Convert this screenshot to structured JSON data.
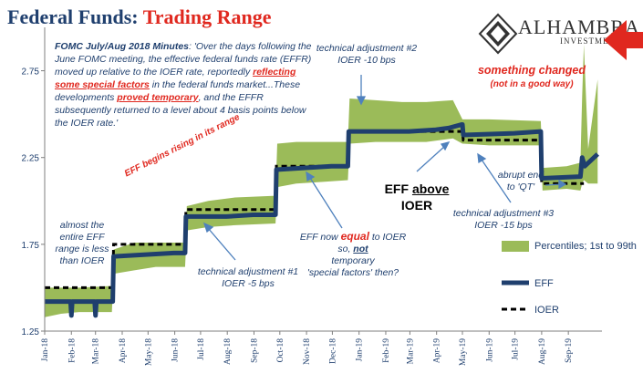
{
  "title": {
    "part1": "Federal Funds:",
    "part2": "Trading Range"
  },
  "logo": {
    "name": "ALHAMBRA",
    "sub": "INVESTMENTS"
  },
  "minutes": {
    "lead": "FOMC July/Aug 2018 Minutes",
    "t1": ": 'Over the days following the June FOMC meeting, the effective federal funds rate (EFFR) moved up relative to the IOER rate, reportedly ",
    "r1": "reflecting some special factors",
    "t2": " in the federal funds market...These developments ",
    "r2": "proved temporary",
    "t3": ", and the EFFR subsequently returned to a level about 4 basis points below the IOER rate.'"
  },
  "annotations": {
    "adj2_a": "technical adjustment #2",
    "adj2_b": "IOER -10 bps",
    "changed_a": "something changed",
    "changed_b": "(not in a good way)",
    "rising": "EFF begins rising in its range",
    "almost_a": "almost the",
    "almost_b": "entire EFF",
    "almost_c": "range is less",
    "almost_d": "than IOER",
    "adj1_a": "technical adjustment #1",
    "adj1_b": "IOER -5 bps",
    "equal_a": "EFF now",
    "equal_b": "equal",
    "equal_c": "to IOER",
    "equal_d": "so,",
    "equal_e": "not",
    "equal_f": "temporary",
    "equal_g": "'special factors' then?",
    "above_a": "EFF",
    "above_b": "above",
    "above_c": "IOER",
    "adj3_a": "technical adjustment #3",
    "adj3_b": "IOER -15 bps",
    "qt_a": "abrupt end",
    "qt_b": "to 'QT'"
  },
  "colors": {
    "band": "#9bbb59",
    "eff": "#1f3f6e",
    "ioer": "#000000",
    "accent": "#e0281f"
  },
  "chart_data": {
    "type": "line",
    "ylim": [
      1.25,
      3.0
    ],
    "yticks": [
      "1.25",
      "1.75",
      "2.25",
      "2.75"
    ],
    "ytick_values": [
      1.25,
      1.75,
      2.25,
      2.75
    ],
    "xlim": [
      "2018-01-01",
      "2019-10-10"
    ],
    "xtick_labels": [
      "Jan-18",
      "Feb-18",
      "Mar-18",
      "Apr-18",
      "May-18",
      "Jun-18",
      "Jul-18",
      "Aug-18",
      "Sep-18",
      "Oct-18",
      "Nov-18",
      "Dec-18",
      "Jan-19",
      "Feb-19",
      "Mar-19",
      "Apr-19",
      "May-19",
      "Jun-19",
      "Jul-19",
      "Aug-19",
      "Sep-19"
    ],
    "xtick_dates": [
      "2018-01-01",
      "2018-02-01",
      "2018-03-01",
      "2018-04-01",
      "2018-05-01",
      "2018-06-01",
      "2018-07-01",
      "2018-08-01",
      "2018-09-01",
      "2018-10-01",
      "2018-11-01",
      "2018-12-01",
      "2019-01-01",
      "2019-02-01",
      "2019-03-01",
      "2019-04-01",
      "2019-05-01",
      "2019-06-01",
      "2019-07-01",
      "2019-08-01",
      "2019-09-01"
    ],
    "series": [
      {
        "name": "Percentiles; 1st to 99th",
        "kind": "band",
        "points": [
          [
            "2018-01-01",
            1.33,
            1.5
          ],
          [
            "2018-01-20",
            1.35,
            1.5
          ],
          [
            "2018-02-10",
            1.36,
            1.5
          ],
          [
            "2018-03-20",
            1.36,
            1.51
          ],
          [
            "2018-03-22",
            1.58,
            1.72
          ],
          [
            "2018-04-15",
            1.6,
            1.76
          ],
          [
            "2018-05-10",
            1.62,
            1.76
          ],
          [
            "2018-06-13",
            1.62,
            1.76
          ],
          [
            "2018-06-15",
            1.83,
            1.97
          ],
          [
            "2018-07-10",
            1.85,
            2.0
          ],
          [
            "2018-08-10",
            1.86,
            2.02
          ],
          [
            "2018-09-26",
            1.87,
            2.03
          ],
          [
            "2018-09-28",
            2.08,
            2.33
          ],
          [
            "2018-10-20",
            2.1,
            2.34
          ],
          [
            "2018-11-20",
            2.11,
            2.34
          ],
          [
            "2018-12-19",
            2.12,
            2.34
          ],
          [
            "2018-12-21",
            2.33,
            2.59
          ],
          [
            "2019-01-20",
            2.34,
            2.58
          ],
          [
            "2019-02-20",
            2.34,
            2.57
          ],
          [
            "2019-03-20",
            2.34,
            2.57
          ],
          [
            "2019-04-20",
            2.36,
            2.58
          ],
          [
            "2019-05-01",
            2.33,
            2.47
          ],
          [
            "2019-06-01",
            2.32,
            2.47
          ],
          [
            "2019-07-31",
            2.32,
            2.46
          ],
          [
            "2019-08-02",
            2.06,
            2.19
          ],
          [
            "2019-08-30",
            2.07,
            2.2
          ],
          [
            "2019-09-15",
            2.06,
            2.22
          ],
          [
            "2019-09-17",
            2.1,
            2.6
          ],
          [
            "2019-09-19",
            2.12,
            2.9
          ],
          [
            "2019-09-24",
            2.1,
            2.3
          ],
          [
            "2019-10-05",
            2.1,
            2.7
          ]
        ]
      },
      {
        "name": "EFF",
        "kind": "line",
        "points": [
          [
            "2018-01-01",
            1.42
          ],
          [
            "2018-01-31",
            1.42
          ],
          [
            "2018-02-01",
            1.34
          ],
          [
            "2018-02-02",
            1.42
          ],
          [
            "2018-02-28",
            1.42
          ],
          [
            "2018-03-01",
            1.34
          ],
          [
            "2018-03-02",
            1.42
          ],
          [
            "2018-03-21",
            1.42
          ],
          [
            "2018-03-22",
            1.68
          ],
          [
            "2018-05-31",
            1.7
          ],
          [
            "2018-06-01",
            1.7
          ],
          [
            "2018-06-13",
            1.7
          ],
          [
            "2018-06-14",
            1.91
          ],
          [
            "2018-07-31",
            1.91
          ],
          [
            "2018-08-31",
            1.92
          ],
          [
            "2018-09-26",
            1.92
          ],
          [
            "2018-09-27",
            2.18
          ],
          [
            "2018-11-30",
            2.2
          ],
          [
            "2018-12-19",
            2.2
          ],
          [
            "2018-12-20",
            2.4
          ],
          [
            "2019-02-28",
            2.4
          ],
          [
            "2019-03-31",
            2.41
          ],
          [
            "2019-04-15",
            2.42
          ],
          [
            "2019-04-30",
            2.44
          ],
          [
            "2019-05-01",
            2.44
          ],
          [
            "2019-05-02",
            2.38
          ],
          [
            "2019-06-30",
            2.39
          ],
          [
            "2019-07-31",
            2.4
          ],
          [
            "2019-08-01",
            2.13
          ],
          [
            "2019-09-15",
            2.14
          ],
          [
            "2019-09-17",
            2.25
          ],
          [
            "2019-09-20",
            2.2
          ],
          [
            "2019-10-05",
            2.27
          ]
        ]
      },
      {
        "name": "IOER",
        "kind": "dashed",
        "points": [
          [
            "2018-01-01",
            1.5
          ],
          [
            "2018-03-21",
            1.5
          ],
          [
            "2018-03-22",
            1.75
          ],
          [
            "2018-06-13",
            1.75
          ],
          [
            "2018-06-14",
            1.95
          ],
          [
            "2018-09-26",
            1.95
          ],
          [
            "2018-09-27",
            2.2
          ],
          [
            "2018-12-19",
            2.2
          ],
          [
            "2018-12-20",
            2.4
          ],
          [
            "2019-05-01",
            2.4
          ],
          [
            "2019-05-02",
            2.35
          ],
          [
            "2019-07-31",
            2.35
          ],
          [
            "2019-08-01",
            2.1
          ],
          [
            "2019-09-18",
            2.1
          ],
          [
            "2019-09-19",
            2.1
          ]
        ]
      }
    ]
  }
}
